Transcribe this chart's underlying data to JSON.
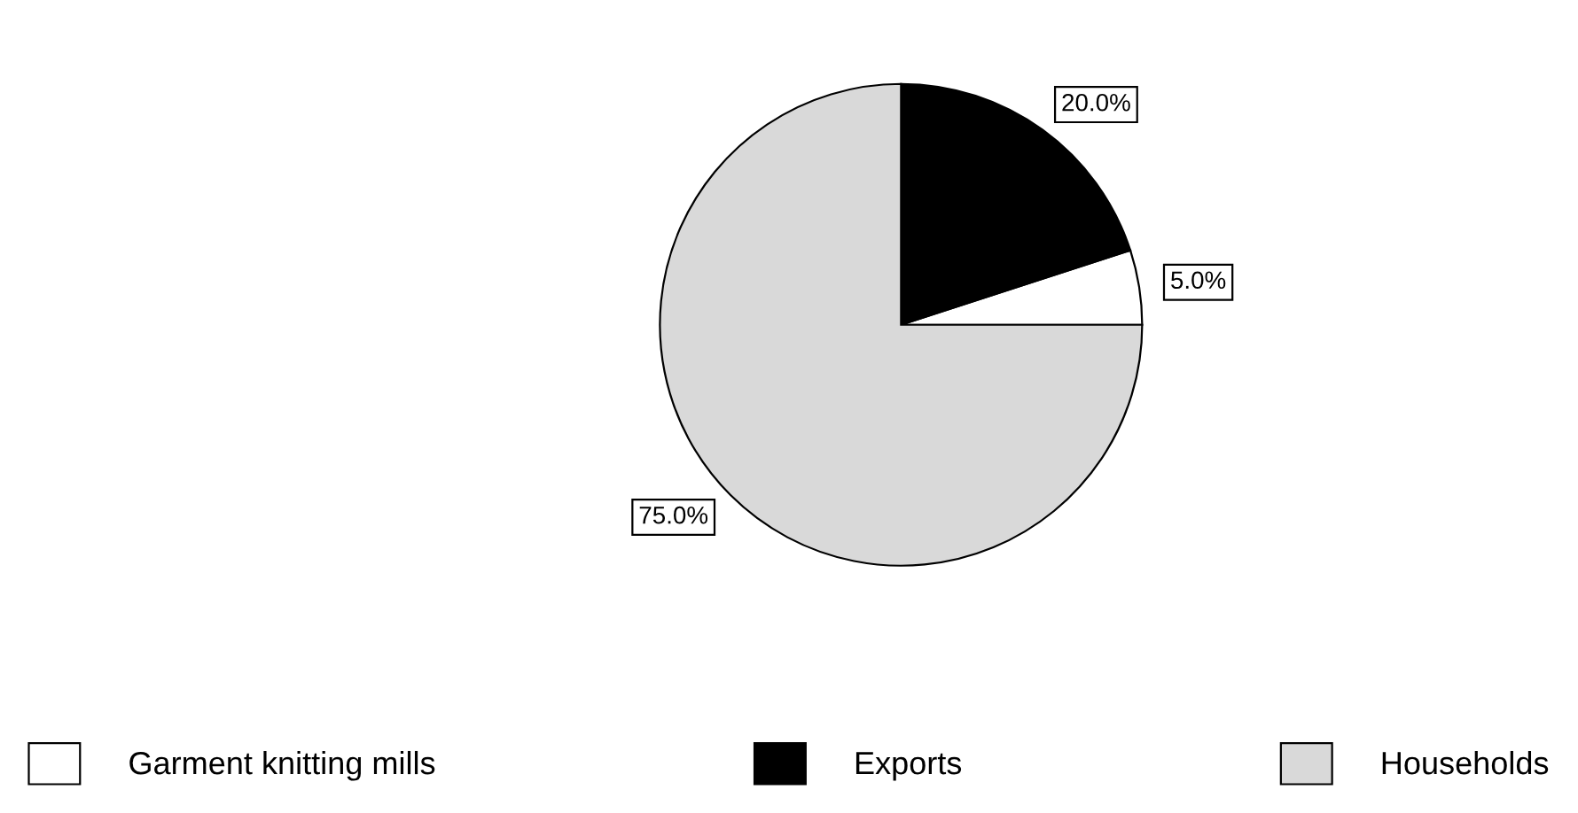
{
  "chart_data": {
    "type": "pie",
    "categories": [
      "Garment knitting mills",
      "Exports",
      "Households"
    ],
    "values": [
      5,
      20,
      75
    ],
    "colors": [
      "#ffffff",
      "#000000",
      "#d9d9d9"
    ],
    "value_labels": [
      "5.0%",
      "20.0%",
      "75.0%"
    ],
    "legend": "bottom"
  }
}
